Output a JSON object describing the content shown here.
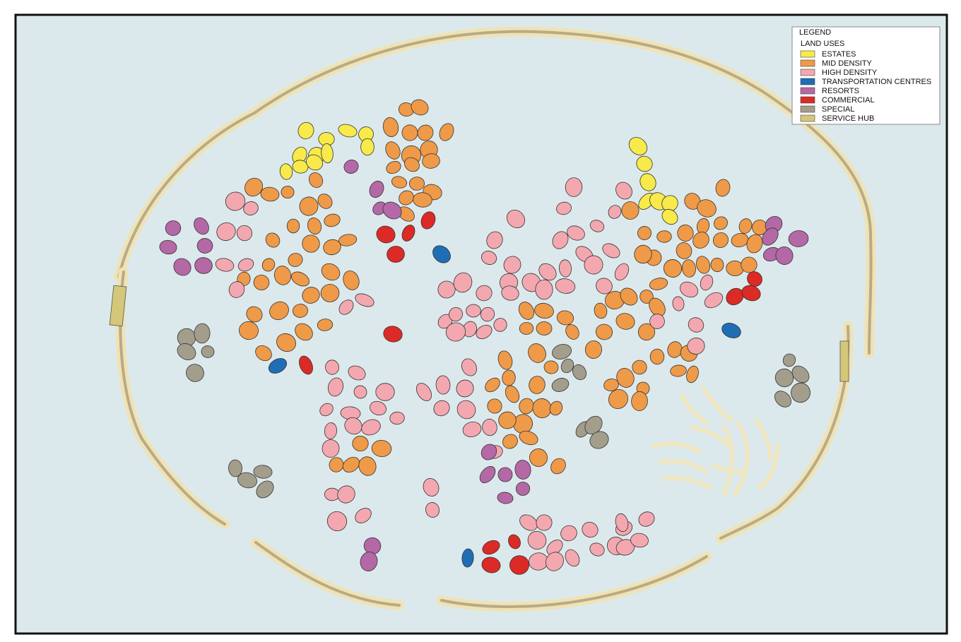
{
  "legend": {
    "title": "LEGEND",
    "subtitle": "LAND USES",
    "items": [
      {
        "label": "ESTATES",
        "color": "#f7ea4a"
      },
      {
        "label": "MID DENSITY",
        "color": "#ef9a48"
      },
      {
        "label": "HIGH DENSITY",
        "color": "#f3a8b0"
      },
      {
        "label": "TRANSPORTATION CENTRES",
        "color": "#1f6db5"
      },
      {
        "label": "RESORTS",
        "color": "#b468a6"
      },
      {
        "label": "COMMERCIAL",
        "color": "#dc2a26"
      },
      {
        "label": "SPECIAL",
        "color": "#a39d8c"
      },
      {
        "label": "SERVICE HUB",
        "color": "#d4c77a"
      }
    ]
  }
}
